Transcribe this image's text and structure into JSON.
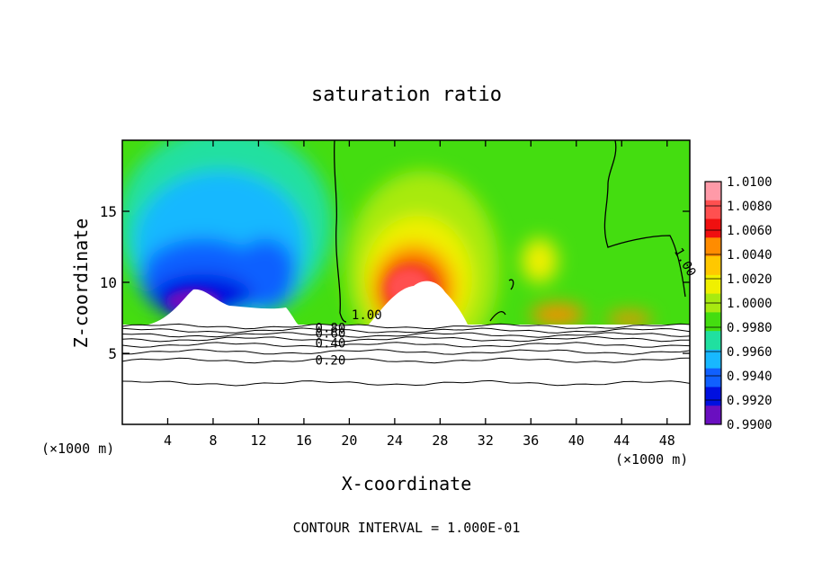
{
  "chart_data": {
    "type": "heatmap",
    "title": "saturation ratio",
    "xlabel": "X-coordinate",
    "ylabel": "Z-coordinate",
    "x_unit": "(×1000 m)",
    "y_unit": "(×1000 m)",
    "xlim": [
      0,
      50
    ],
    "ylim": [
      0,
      20
    ],
    "xticks": [
      4,
      8,
      12,
      16,
      20,
      24,
      28,
      32,
      36,
      40,
      44,
      48
    ],
    "yticks": [
      5,
      10,
      15
    ],
    "footer": "CONTOUR INTERVAL = 1.000E-01",
    "colorbar": {
      "levels": [
        "1.0100",
        "1.0080",
        "1.0060",
        "1.0040",
        "1.0020",
        "1.0000",
        "0.9980",
        "0.9960",
        "0.9940",
        "0.9920",
        "0.9900"
      ],
      "colors": [
        "#ff9aa8",
        "#ff5050",
        "#f01010",
        "#ff8c00",
        "#ffc800",
        "#f0f000",
        "#a8ea10",
        "#44dd10",
        "#20e0a0",
        "#18b8ff",
        "#1060ff",
        "#0010e0",
        "#6a0fc0"
      ]
    },
    "contour_labels": [
      {
        "text": "1.00",
        "x": 20.2,
        "y": 7.4
      },
      {
        "text": "1.00",
        "x": 48.6,
        "y": 12.2
      },
      {
        "text": "0.80",
        "x": 17.0,
        "y": 6.5
      },
      {
        "text": "0.60",
        "x": 17.0,
        "y": 6.1
      },
      {
        "text": "0.40",
        "x": 17.0,
        "y": 5.4
      },
      {
        "text": "0.20",
        "x": 17.0,
        "y": 4.2
      }
    ],
    "contour_lines_y": [
      6.9,
      6.6,
      6.3,
      6.0,
      5.6,
      5.1,
      4.5,
      2.9
    ]
  }
}
